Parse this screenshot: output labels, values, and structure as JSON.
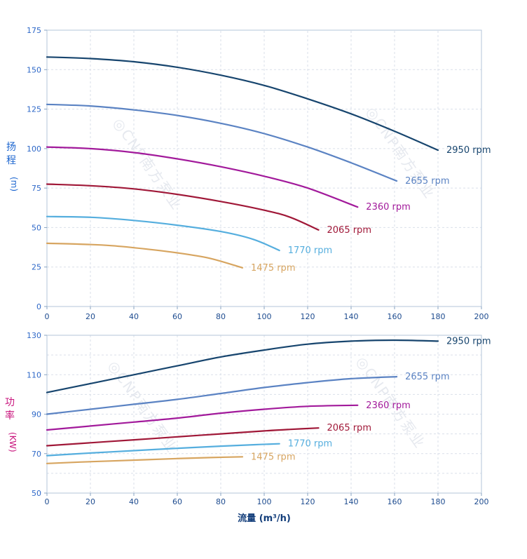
{
  "watermark": {
    "text": "◎CNP南方泵业",
    "color": "#e2e6ed"
  },
  "styles": {
    "grid": "#dadfe9",
    "border": "#b3c5da",
    "tick": "#87a3c2",
    "y_tick_label": "#2e68c8",
    "x_tick_label": "#1d4b8f",
    "x_title_color": "#123d7a"
  },
  "chart_data": [
    {
      "type": "line",
      "panel": "head",
      "ylabel_stack": [
        "扬",
        "程"
      ],
      "ylabel_unit": "(m)",
      "ylabel_color": "#1a64cf",
      "xlabel": "",
      "xlim": [
        0,
        200
      ],
      "xticks": [
        0,
        20,
        40,
        60,
        80,
        100,
        120,
        140,
        160,
        180,
        200
      ],
      "ylim": [
        0,
        175
      ],
      "yticks": [
        0,
        25,
        50,
        75,
        100,
        125,
        150,
        175
      ],
      "ygrid": [
        0,
        25,
        50,
        75,
        100,
        125,
        150,
        175
      ],
      "grid": true,
      "legend_position": "end-of-line",
      "series": [
        {
          "name": "2950 rpm",
          "color": "#17456e",
          "x": [
            0,
            20,
            40,
            60,
            80,
            100,
            120,
            140,
            160,
            180
          ],
          "y": [
            158,
            157,
            155,
            151.5,
            146.5,
            140,
            131.5,
            122,
            111,
            99
          ]
        },
        {
          "name": "2655 rpm",
          "color": "#5b83c3",
          "x": [
            0,
            20,
            40,
            60,
            80,
            100,
            120,
            140,
            161
          ],
          "y": [
            128,
            127,
            124.5,
            121,
            116,
            109.5,
            101,
            91,
            79.5
          ]
        },
        {
          "name": "2360 rpm",
          "color": "#a21a9b",
          "x": [
            0,
            20,
            40,
            60,
            80,
            100,
            120,
            143
          ],
          "y": [
            101,
            100,
            97.5,
            93.5,
            88.5,
            82.5,
            75,
            63
          ]
        },
        {
          "name": "2065 rpm",
          "color": "#a01838",
          "x": [
            0,
            20,
            40,
            60,
            80,
            100,
            112,
            125
          ],
          "y": [
            77.5,
            76.5,
            74.5,
            71,
            66.5,
            61,
            56.5,
            48.5
          ]
        },
        {
          "name": "1770 rpm",
          "color": "#55aede",
          "x": [
            0,
            20,
            40,
            60,
            80,
            95,
            107
          ],
          "y": [
            57,
            56.5,
            54.5,
            51.5,
            47.5,
            42.5,
            35.5
          ]
        },
        {
          "name": "1475 rpm",
          "color": "#d7a560",
          "x": [
            0,
            15,
            30,
            45,
            60,
            75,
            90
          ],
          "y": [
            40,
            39.5,
            38.5,
            36.5,
            34,
            30.5,
            24.5
          ]
        }
      ]
    },
    {
      "type": "line",
      "panel": "power",
      "ylabel_stack": [
        "功",
        "率"
      ],
      "ylabel_unit": "(KW)",
      "ylabel_color": "#c9157d",
      "xlabel": "流量 (m³/h)",
      "xlim": [
        0,
        200
      ],
      "xticks": [
        0,
        20,
        40,
        60,
        80,
        100,
        120,
        140,
        160,
        180,
        200
      ],
      "ylim": [
        50,
        130
      ],
      "yticks": [
        50,
        70,
        90,
        110,
        130
      ],
      "ygrid": [
        50,
        60,
        70,
        80,
        90,
        100,
        110,
        120,
        130
      ],
      "grid": true,
      "legend_position": "end-of-line",
      "series": [
        {
          "name": "2950 rpm",
          "color": "#17456e",
          "x": [
            0,
            20,
            40,
            60,
            80,
            100,
            120,
            140,
            160,
            180
          ],
          "y": [
            101,
            105.5,
            110,
            114.5,
            119,
            122.5,
            125.5,
            127,
            127.5,
            127
          ]
        },
        {
          "name": "2655 rpm",
          "color": "#5b83c3",
          "x": [
            0,
            20,
            40,
            60,
            80,
            100,
            120,
            140,
            161
          ],
          "y": [
            90,
            92.5,
            95,
            97.5,
            100.5,
            103.5,
            106,
            108,
            109
          ]
        },
        {
          "name": "2360 rpm",
          "color": "#a21a9b",
          "x": [
            0,
            20,
            40,
            60,
            80,
            100,
            120,
            143
          ],
          "y": [
            82,
            84,
            86,
            88,
            90.5,
            92.5,
            94,
            94.5
          ]
        },
        {
          "name": "2065 rpm",
          "color": "#a01838",
          "x": [
            0,
            20,
            40,
            60,
            80,
            100,
            112,
            125
          ],
          "y": [
            74,
            75.5,
            77,
            78.5,
            80,
            81.5,
            82.3,
            83
          ]
        },
        {
          "name": "1770 rpm",
          "color": "#55aede",
          "x": [
            0,
            20,
            40,
            60,
            80,
            95,
            107
          ],
          "y": [
            69,
            70.3,
            71.5,
            72.7,
            73.8,
            74.5,
            75
          ]
        },
        {
          "name": "1475 rpm",
          "color": "#d7a560",
          "x": [
            0,
            15,
            30,
            45,
            60,
            75,
            90
          ],
          "y": [
            65,
            65.7,
            66.3,
            66.9,
            67.5,
            68,
            68.4
          ]
        }
      ]
    }
  ]
}
